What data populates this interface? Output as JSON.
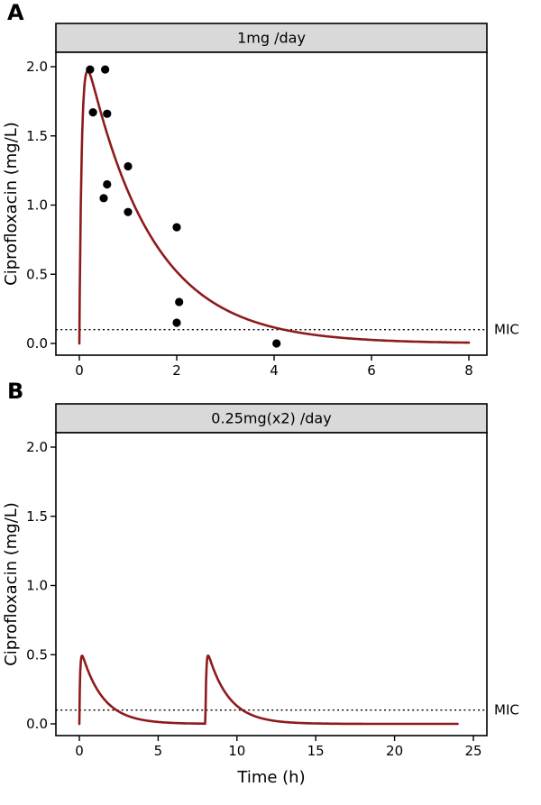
{
  "figure": {
    "panel_a_letter": "A",
    "panel_b_letter": "B"
  },
  "chart_data": [
    {
      "type": "line",
      "panel": "A",
      "title": "1mg /day",
      "ylabel": "Ciprofloxacin (mg/L)",
      "xlabel": "",
      "xlim": [
        0,
        8
      ],
      "xticks": [
        0,
        2,
        4,
        6,
        8
      ],
      "xtick_labels": [
        "0",
        "2",
        "4",
        "6",
        "8"
      ],
      "ylim": [
        0,
        2.0
      ],
      "yticks": [
        0,
        0.5,
        1.0,
        1.5,
        2.0
      ],
      "ytick_labels": [
        "0.0",
        "0.5",
        "1.0",
        "1.5",
        "2.0"
      ],
      "mic": {
        "value": 0.1,
        "label": "MIC"
      },
      "scatter": [
        [
          0.22,
          1.98
        ],
        [
          0.53,
          1.98
        ],
        [
          0.28,
          1.67
        ],
        [
          0.57,
          1.66
        ],
        [
          0.57,
          1.15
        ],
        [
          0.5,
          1.05
        ],
        [
          1.0,
          1.28
        ],
        [
          1.0,
          0.95
        ],
        [
          2.0,
          0.84
        ],
        [
          2.05,
          0.3
        ],
        [
          2.0,
          0.15
        ],
        [
          4.05,
          0.0
        ]
      ],
      "curve_model": {
        "form": "sum_of_doses",
        "scale": 2.325,
        "ka": 20,
        "ke": 0.75,
        "dose_times": [
          0
        ],
        "t_end": 8
      },
      "curve_color": "#8e1b1b",
      "strip_fill": "#d9d9d9",
      "grid": false,
      "legend": "none"
    },
    {
      "type": "line",
      "panel": "B",
      "title": "0.25mg(x2) /day",
      "ylabel": "Ciprofloxacin (mg/L)",
      "xlabel": "Time (h)",
      "xlim": [
        0,
        25
      ],
      "xticks": [
        0,
        5,
        10,
        15,
        20,
        25
      ],
      "xtick_labels": [
        "0",
        "5",
        "10",
        "15",
        "20",
        "25"
      ],
      "ylim": [
        0,
        2.0
      ],
      "yticks": [
        0,
        0.5,
        1.0,
        1.5,
        2.0
      ],
      "ytick_labels": [
        "0.0",
        "0.5",
        "1.0",
        "1.5",
        "2.0"
      ],
      "mic": {
        "value": 0.1,
        "label": "MIC"
      },
      "scatter": [],
      "curve_model": {
        "form": "sum_of_doses",
        "scale": 0.581,
        "ka": 20,
        "ke": 0.75,
        "dose_times": [
          0,
          8
        ],
        "t_end": 24
      },
      "curve_color": "#8e1b1b",
      "strip_fill": "#d9d9d9",
      "grid": false,
      "legend": "none"
    }
  ]
}
